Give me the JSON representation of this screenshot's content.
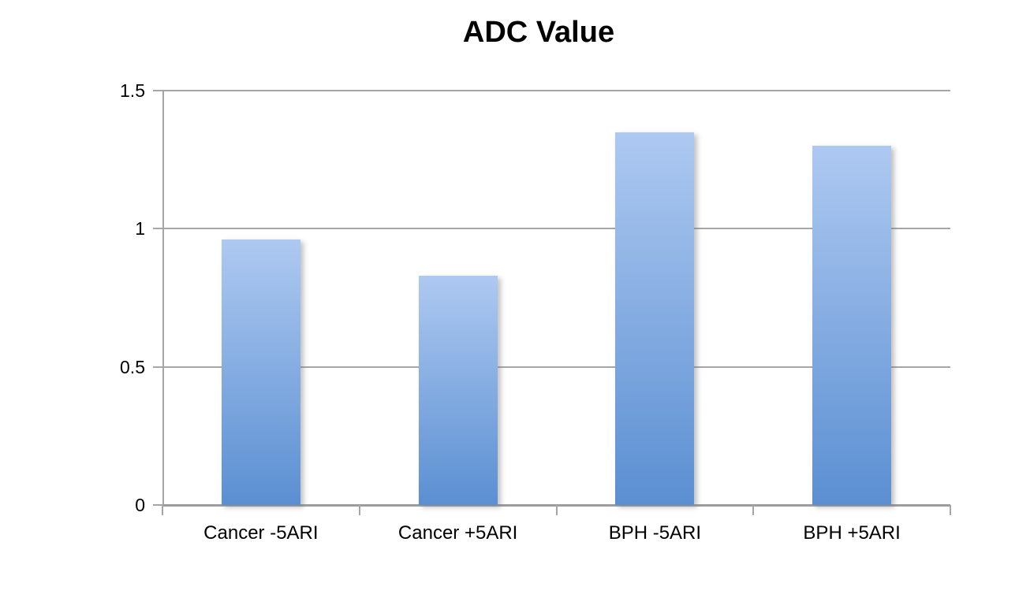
{
  "chart_data": {
    "type": "bar",
    "title": "ADC Value",
    "categories": [
      "Cancer -5ARI",
      "Cancer +5ARI",
      "BPH -5ARI",
      "BPH +5ARI"
    ],
    "values": [
      0.96,
      0.83,
      1.35,
      1.3
    ],
    "xlabel": "",
    "ylabel": "",
    "ylim": [
      0,
      1.5
    ],
    "yticks": [
      0,
      0.5,
      1,
      1.5
    ],
    "ytick_labels": [
      "0",
      "0.5",
      "1",
      "1.5"
    ],
    "grid": true,
    "legend": false,
    "colors": {
      "bar_gradient_top": "#aec9f1",
      "bar_gradient_bottom": "#5b8fd2",
      "axis": "#a6a6a6",
      "text": "#000000",
      "background": "#ffffff"
    }
  }
}
